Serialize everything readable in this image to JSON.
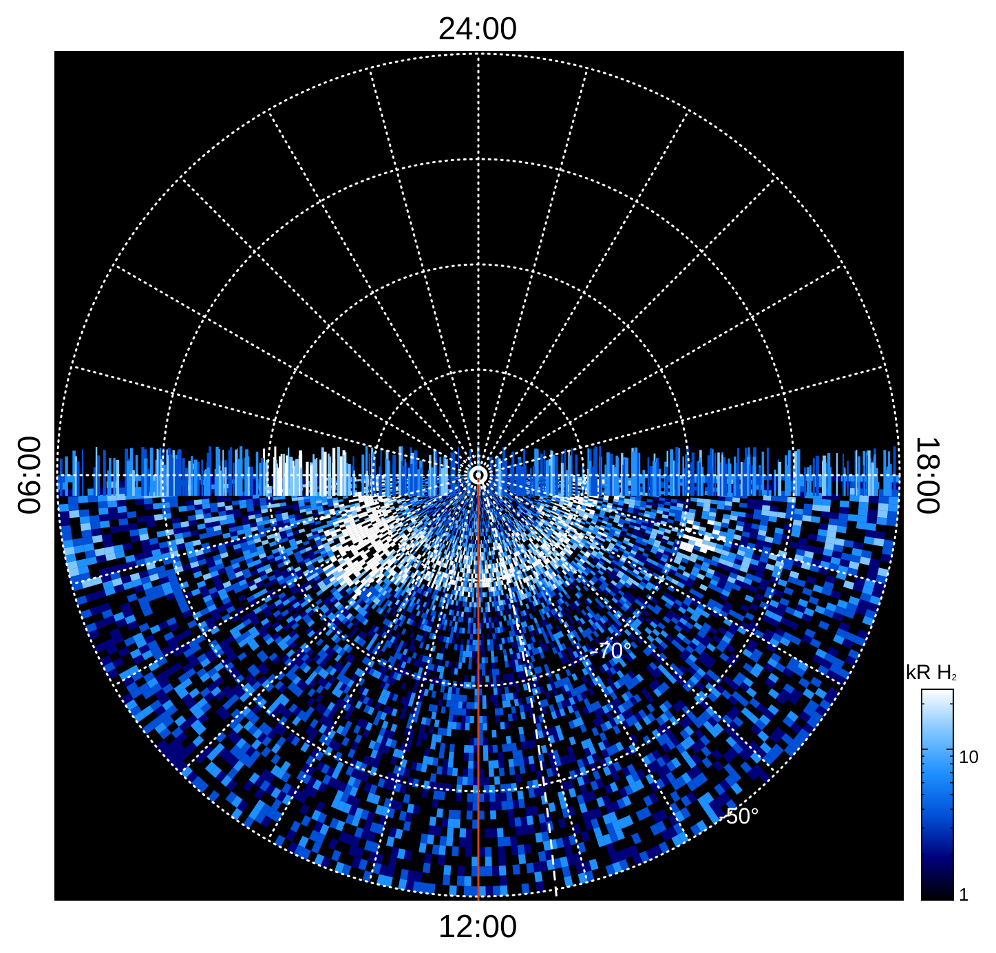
{
  "chart_data": {
    "type": "heatmap",
    "projection": "polar",
    "local_time_labels": {
      "top": "24:00",
      "bottom": "12:00",
      "left": "06:00",
      "right": "18:00"
    },
    "latitude_labels": [
      "-70°",
      "-50°"
    ],
    "colorbar": {
      "title": "kR H",
      "title_subscript": "2",
      "scale": "log",
      "ticks": [
        "10",
        "1"
      ],
      "range": [
        1,
        25
      ],
      "colors": [
        "#000000",
        "#00007a",
        "#0050d8",
        "#1e90ff",
        "#7fc6ff",
        "#ffffff"
      ]
    },
    "reference_line_color": "#d2421e",
    "grid_color": "#ffffff",
    "grid": true
  }
}
